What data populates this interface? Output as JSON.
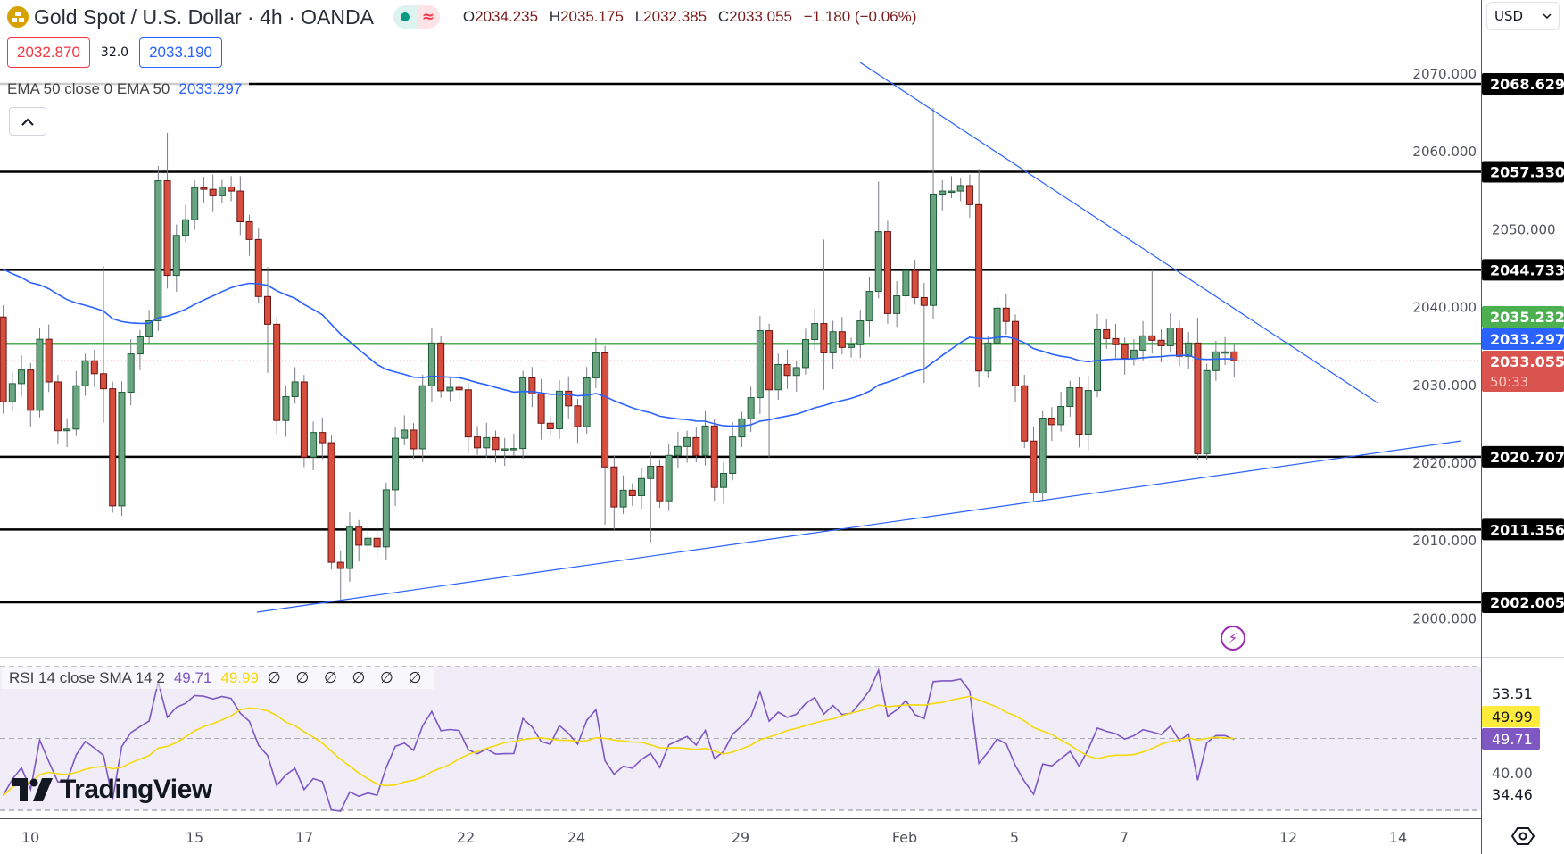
{
  "header": {
    "symbol_title": "Gold Spot / U.S. Dollar · 4h · OANDA",
    "market_status_icon": "market-open-dot",
    "data_icon": "approx-icon",
    "data_icon_glyph": "≈",
    "ohlc": [
      {
        "key": "O",
        "value": "2034.235"
      },
      {
        "key": "H",
        "value": "2035.175"
      },
      {
        "key": "L",
        "value": "2032.385"
      },
      {
        "key": "C",
        "value": "2033.055"
      }
    ],
    "change": "−1.180 (−0.06%)"
  },
  "quotes": {
    "sell": "2032.870",
    "spread": "32.0",
    "buy": "2033.190"
  },
  "ema_legend": {
    "label": "EMA 50 close 0 EMA 50",
    "value": "2033.297"
  },
  "currency": {
    "label": "USD"
  },
  "rsi_legend": {
    "label": "RSI 14 close SMA 14 2",
    "rsi_value": "49.71",
    "sma_value": "49.99",
    "extra": "∅ ∅ ∅ ∅ ∅ ∅"
  },
  "logo": {
    "text": "TradingView"
  },
  "colors": {
    "up": "#6aa582",
    "down": "#d64f3e",
    "ema": "#2962ff",
    "rsi": "#7e57c2",
    "rsi_sma": "#f5d90a",
    "support_resistance": "#000000",
    "ema_level": "#4caf50",
    "last_price": "#d9534f"
  },
  "chart_data": {
    "type": "candlestick",
    "timeframe": "4h",
    "price_axis_ticks": [
      "2070.000",
      "2060.000",
      "2050.000",
      "2040.000",
      "2030.000",
      "2020.000",
      "2010.000",
      "2000.000"
    ],
    "time_axis_labels": [
      "10",
      "15",
      "17",
      "22",
      "24",
      "29",
      "Feb",
      "5",
      "7",
      "12",
      "14"
    ],
    "first_open": 2038.67,
    "closes": [
      2027.78,
      2030.11,
      2031.86,
      2026.68,
      2035.81,
      2030.33,
      2024.05,
      2024.27,
      2029.84,
      2033.05,
      2031.38,
      2029.45,
      2014.4,
      2029.01,
      2033.93,
      2036.12,
      2038.18,
      2056.18,
      2044.02,
      2049.16,
      2051.17,
      2055.3,
      2055.08,
      2054.25,
      2055.39,
      2054.86,
      2050.91,
      2048.63,
      2041.3,
      2037.74,
      2025.37,
      2028.44,
      2030.33,
      2020.67,
      2023.83,
      2022.52,
      2007.15,
      2006.36,
      2011.67,
      2009.35,
      2010.23,
      2009.13,
      2016.46,
      2023.09,
      2024.14,
      2021.73,
      2029.84,
      2035.33,
      2029.19,
      2029.63,
      2029.32,
      2023.26,
      2021.86,
      2023.17,
      2021.64,
      2021.73,
      2021.77,
      2030.85,
      2028.79,
      2025.02,
      2024.31,
      2029.14,
      2027.25,
      2024.58,
      2030.85,
      2034.06,
      2019.4,
      2014.26,
      2016.41,
      2015.71,
      2017.91,
      2019.49,
      2015.05,
      2020.89,
      2022.03,
      2023.17,
      2020.89,
      2024.67,
      2016.77,
      2018.57,
      2023.26,
      2025.59,
      2028.31,
      2036.91,
      2029.32,
      2032.57,
      2031.16,
      2032.17,
      2035.77,
      2037.83,
      2034.06,
      2036.78,
      2034.76,
      2035.11,
      2038.18,
      2041.96,
      2049.64,
      2039.11,
      2041.39,
      2044.64,
      2041.17,
      2040.16,
      2054.47,
      2054.86,
      2054.86,
      2055.56,
      2053.11,
      2031.73,
      2035.33,
      2039.81,
      2038.1,
      2029.84,
      2022.73,
      2016.06,
      2025.68,
      2024.84,
      2027.17,
      2029.58,
      2023.61,
      2029.23,
      2037.04,
      2035.9,
      2035.11,
      2033.36,
      2034.41,
      2036.25,
      2035.68,
      2034.98,
      2037.26,
      2033.62,
      2035.33,
      2021.11,
      2031.78,
      2034.19,
      2034.19,
      2033.055
    ],
    "high_overrides": {
      "0": 2040.2,
      "11": 2045.2,
      "18": 2062.32,
      "29": 2045.1,
      "90": 2048.63,
      "96": 2056.09,
      "102": 2065.53,
      "107": 2057.7,
      "120": 2039.06,
      "126": 2044.7,
      "131": 2038.6
    },
    "low_overrides": {
      "0": 2026.25,
      "11": 2025.1,
      "12": 2013.52,
      "29": 2031.5,
      "37": 2002.1,
      "66": 2011.98,
      "67": 2011.32,
      "71": 2009.57,
      "84": 2020.63,
      "90": 2029.32,
      "101": 2030.2,
      "113": 2015.05,
      "114": 2015.05,
      "131": 2020.3,
      "132": 2020.3
    },
    "horizontal_levels": [
      2068.629,
      2057.33,
      2044.733,
      2020.707,
      2011.356,
      2002.005
    ],
    "ema_level": 2035.232,
    "last_price": 2033.055,
    "ema50_last": 2033.297,
    "bar_countdown": "50:33",
    "indicator": {
      "name": "RSI",
      "length": 14,
      "source": "close",
      "sma_length": 14,
      "bands": [
        70,
        50,
        30
      ],
      "axis_labels": [
        "53.51",
        "49.99",
        "49.71",
        "40.00",
        "34.46"
      ]
    }
  }
}
